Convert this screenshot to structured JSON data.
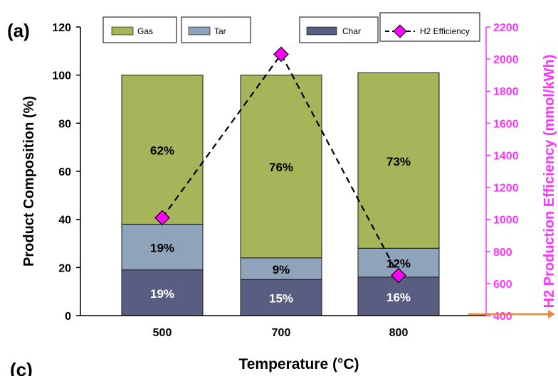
{
  "panel_label": "(a)",
  "next_panel_label": "(c)",
  "colors": {
    "gas": "#a8b45a",
    "tar": "#8fa3bb",
    "char": "#5a5d82",
    "efficiency_marker": "#ff00ff",
    "right_axis": "#ff33ff",
    "arrow": "#e8883a"
  },
  "chart_data": {
    "type": "bar",
    "stacked": true,
    "categories": [
      "500",
      "700",
      "800"
    ],
    "xlabel": "Temperature (°C)",
    "ylabel": "Product Composition (%)",
    "ylim": [
      0,
      120
    ],
    "yticks": [
      "0",
      "20",
      "40",
      "60",
      "80",
      "100",
      "120"
    ],
    "series": [
      {
        "name": "Char",
        "values": [
          19,
          15,
          16
        ],
        "labels": [
          "19%",
          "15%",
          "16%"
        ]
      },
      {
        "name": "Tar",
        "values": [
          19,
          9,
          12
        ],
        "labels": [
          "19%",
          "9%",
          "12%"
        ]
      },
      {
        "name": "Gas",
        "values": [
          62,
          76,
          73
        ],
        "labels": [
          "62%",
          "76%",
          "73%"
        ]
      }
    ],
    "secondary": {
      "type": "line",
      "name": "H2 Efficiency",
      "ylabel": "H2 Production Efficiency (mmol/kWh)",
      "ylim": [
        400,
        2200
      ],
      "yticks": [
        "400",
        "600",
        "800",
        "1000",
        "1200",
        "1400",
        "1600",
        "1800",
        "2000",
        "2200"
      ],
      "values": [
        1010,
        2030,
        650
      ]
    },
    "legend": [
      "Gas",
      "Tar",
      "Char",
      "H2 Efficiency"
    ],
    "legend_position": "top"
  }
}
